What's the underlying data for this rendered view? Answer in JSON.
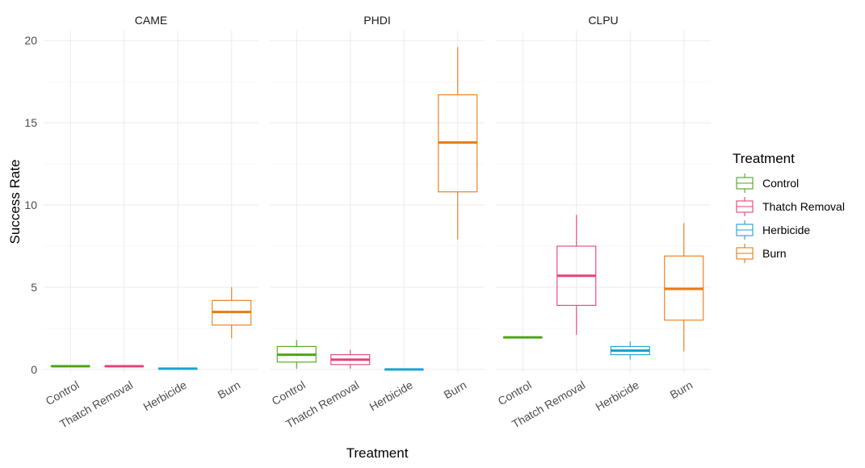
{
  "chart_data": {
    "type": "boxplot",
    "xlabel": "Treatment",
    "ylabel": "Success Rate",
    "ylim": [
      -0.2,
      20.6
    ],
    "y_ticks": [
      "0",
      "5",
      "10",
      "15",
      "20"
    ],
    "grid": true,
    "legend_position": "right",
    "legend_title": "Treatment",
    "categories": [
      "Control",
      "Thatch Removal",
      "Herbicide",
      "Burn"
    ],
    "colors": {
      "Control": "#4da416",
      "Thatch Removal": "#e8417a",
      "Herbicide": "#1ba2d0",
      "Burn": "#e47b15"
    },
    "facets": [
      {
        "name": "CAME",
        "boxes": [
          {
            "category": "Control",
            "min": 0.2,
            "q1": 0.2,
            "median": 0.2,
            "q3": 0.2,
            "max": 0.2
          },
          {
            "category": "Thatch Removal",
            "min": 0.2,
            "q1": 0.2,
            "median": 0.2,
            "q3": 0.2,
            "max": 0.2
          },
          {
            "category": "Herbicide",
            "min": 0.05,
            "q1": 0.05,
            "median": 0.05,
            "q3": 0.05,
            "max": 0.05
          },
          {
            "category": "Burn",
            "min": 1.9,
            "q1": 2.7,
            "median": 3.5,
            "q3": 4.2,
            "max": 5.0
          }
        ]
      },
      {
        "name": "PHDI",
        "boxes": [
          {
            "category": "Control",
            "min": 0.05,
            "q1": 0.45,
            "median": 0.9,
            "q3": 1.4,
            "max": 1.8
          },
          {
            "category": "Thatch Removal",
            "min": 0.05,
            "q1": 0.3,
            "median": 0.6,
            "q3": 0.9,
            "max": 1.2
          },
          {
            "category": "Herbicide",
            "min": 0.0,
            "q1": 0.0,
            "median": 0.0,
            "q3": 0.0,
            "max": 0.0
          },
          {
            "category": "Burn",
            "min": 7.9,
            "q1": 10.8,
            "median": 13.8,
            "q3": 16.7,
            "max": 19.6
          }
        ]
      },
      {
        "name": "CLPU",
        "boxes": [
          {
            "category": "Control",
            "min": 1.95,
            "q1": 1.95,
            "median": 1.95,
            "q3": 1.95,
            "max": 1.95
          },
          {
            "category": "Thatch Removal",
            "min": 2.1,
            "q1": 3.9,
            "median": 5.7,
            "q3": 7.5,
            "max": 9.4
          },
          {
            "category": "Herbicide",
            "min": 0.6,
            "q1": 0.9,
            "median": 1.15,
            "q3": 1.4,
            "max": 1.7
          },
          {
            "category": "Burn",
            "min": 1.1,
            "q1": 3.0,
            "median": 4.9,
            "q3": 6.9,
            "max": 8.9
          }
        ]
      }
    ]
  }
}
